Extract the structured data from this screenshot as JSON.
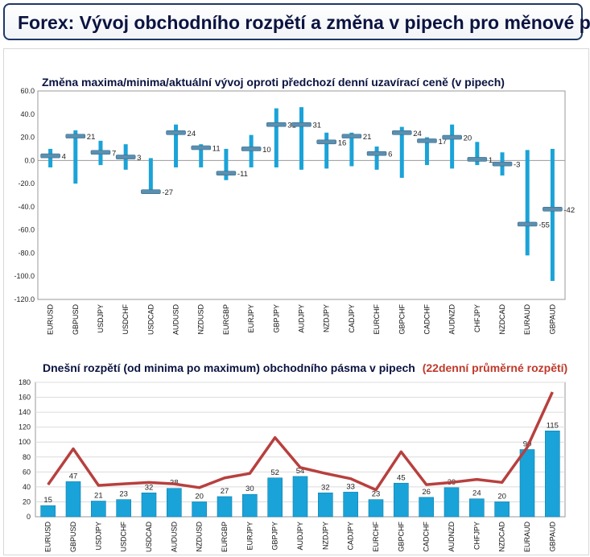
{
  "header": {
    "title": "Forex: Vývoj obchodního rozpětí a změna v pipech pro měnové páry"
  },
  "chart_data": [
    {
      "type": "bar",
      "title": "Změna maxima/minima/aktuální vývoj oproti předchozí denní uzavírací ceně (v pipech)",
      "categories": [
        "EURUSD",
        "GBPUSD",
        "USDJPY",
        "USDCHF",
        "USDCAD",
        "AUDUSD",
        "NZDUSD",
        "EURGBP",
        "EURJPY",
        "GBPJPY",
        "AUDJPY",
        "NZDJPY",
        "CADJPY",
        "EURCHF",
        "GBPCHF",
        "CADCHF",
        "AUDNZD",
        "CHFJPY",
        "NZDCAD",
        "EURAUD",
        "GBPAUD"
      ],
      "series": [
        {
          "values": [
            4,
            21,
            7,
            3,
            -27,
            24,
            11,
            -11,
            10,
            31,
            31,
            16,
            21,
            6,
            24,
            17,
            20,
            1,
            -3,
            -55,
            -42
          ]
        },
        {
          "values": [
            10,
            26,
            17,
            14,
            2,
            31,
            14,
            10,
            22,
            45,
            46,
            24,
            24,
            12,
            29,
            20,
            31,
            16,
            7,
            9,
            10
          ]
        },
        {
          "values": [
            -6,
            -20,
            -4,
            -8,
            -28,
            -6,
            -6,
            -17,
            -6,
            -6,
            -8,
            -7,
            -5,
            -8,
            -15,
            -4,
            -7,
            -4,
            -13,
            -82,
            -104
          ]
        }
      ],
      "ylim": [
        -120,
        60
      ],
      "yticks": [
        "60.0",
        "40.0",
        "20.0",
        "0.0",
        "-20.0",
        "-40.0",
        "-60.0",
        "-80.0",
        "-100.0",
        "-120.0"
      ],
      "data_labels": [
        "4",
        "21",
        "7",
        "3",
        "-27",
        "24",
        "11",
        "-11",
        "10",
        "31",
        "31",
        "16",
        "21",
        "6",
        "24",
        "17",
        "20",
        "1",
        "-3",
        "-55",
        "-42"
      ],
      "colors": {
        "range": "#1aa3d8",
        "marker": "#5a8fb0"
      }
    },
    {
      "type": "bar",
      "title": "Dnešní rozpětí (od minima po maximum) obchodního pásma v pipech",
      "title_highlight": "(22denní průměrné rozpětí)",
      "categories": [
        "EURUSD",
        "GBPUSD",
        "USDJPY",
        "USDCHF",
        "USDCAD",
        "AUDUSD",
        "NZDUSD",
        "EURGBP",
        "EURJPY",
        "GBPJPY",
        "AUDJPY",
        "NZDJPY",
        "CADJPY",
        "EURCHF",
        "GBPCHF",
        "CADCHF",
        "AUDNZD",
        "CHFJPY",
        "NZDCAD",
        "EURAUD",
        "GBPAUD"
      ],
      "series": [
        {
          "values": [
            15,
            47,
            21,
            23,
            32,
            38,
            20,
            27,
            30,
            52,
            54,
            32,
            33,
            23,
            45,
            26,
            39,
            24,
            20,
            90,
            115
          ]
        },
        {
          "values": [
            43,
            91,
            42,
            44,
            46,
            44,
            39,
            52,
            58,
            106,
            66,
            58,
            51,
            36,
            87,
            43,
            46,
            50,
            46,
            93,
            167
          ]
        }
      ],
      "ylim": [
        0,
        180
      ],
      "yticks": [
        "180",
        "160",
        "140",
        "120",
        "100",
        "80",
        "60",
        "40",
        "20",
        "0"
      ],
      "data_labels": [
        "15",
        "47",
        "21",
        "23",
        "32",
        "38",
        "20",
        "27",
        "30",
        "52",
        "54",
        "32",
        "33",
        "23",
        "45",
        "26",
        "39",
        "24",
        "20",
        "90",
        "115"
      ],
      "colors": {
        "bar": "#1aa3d8",
        "line": "#b7403e",
        "highlight": "#c0392b"
      }
    }
  ]
}
